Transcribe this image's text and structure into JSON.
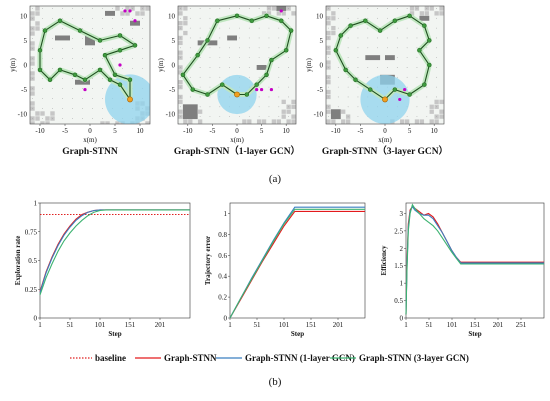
{
  "figure": {
    "part_a_label": "(a)",
    "part_b_label": "(b)"
  },
  "colors": {
    "baseline": "#e02020",
    "graph_stnn": "#e31a1c",
    "gcn1": "#3a7fc1",
    "gcn3": "#3cb371",
    "map_bg": "#f2f5f2",
    "obstacle": "#7f7f7f",
    "unknown": "#c6c6c6",
    "visited": "#d8efd8",
    "trajectory": "#1f4f1f",
    "robot_fov": "#8fd3ee",
    "target": "#c400c4"
  },
  "chart_data": [
    {
      "type": "map",
      "title": "Graph-STNN",
      "xlabel": "x(m)",
      "ylabel": "y(m)",
      "xticks": [
        -10,
        -5,
        0,
        5,
        10
      ],
      "yticks": [
        10,
        5,
        0,
        -5,
        -10
      ],
      "xlim": [
        -12,
        12
      ],
      "ylim": [
        -12,
        12
      ],
      "trajectory": [
        [
          8,
          -7
        ],
        [
          8,
          -3
        ],
        [
          5,
          -2
        ],
        [
          3,
          2
        ],
        [
          6,
          3
        ],
        [
          9,
          4
        ],
        [
          6,
          6
        ],
        [
          2,
          5
        ],
        [
          -2,
          7
        ],
        [
          -6,
          9
        ],
        [
          -9,
          7
        ],
        [
          -10,
          3
        ],
        [
          -10,
          -1
        ],
        [
          -8,
          -3
        ],
        [
          -6,
          -1
        ],
        [
          -3,
          -2
        ],
        [
          -1,
          -3
        ],
        [
          2,
          -1
        ],
        [
          4,
          -3
        ],
        [
          6,
          -4
        ],
        [
          8,
          -7
        ]
      ],
      "walls": [
        [
          -7,
          5,
          3,
          1
        ],
        [
          -1,
          4,
          2,
          2
        ],
        [
          -3,
          -4,
          3,
          1
        ],
        [
          3,
          10,
          2,
          1
        ],
        [
          8,
          8,
          2,
          1
        ]
      ],
      "robot": [
        8,
        -7
      ],
      "fov_radius": 5,
      "targets": [
        [
          7,
          11
        ],
        [
          8,
          11
        ],
        [
          9,
          9
        ],
        [
          -1,
          -5
        ],
        [
          6,
          0
        ]
      ]
    },
    {
      "type": "map",
      "title": "Graph-STNN（1-layer GCN）",
      "xlabel": "x(m)",
      "ylabel": "y(m)",
      "xticks": [
        -10,
        -5,
        0,
        5,
        10
      ],
      "yticks": [
        10,
        5,
        0,
        -5,
        -10
      ],
      "xlim": [
        -12,
        12
      ],
      "ylim": [
        -12,
        12
      ],
      "trajectory": [
        [
          0,
          -6
        ],
        [
          -3,
          -4
        ],
        [
          -6,
          -6
        ],
        [
          -9,
          -5
        ],
        [
          -11,
          -2
        ],
        [
          -8,
          2
        ],
        [
          -6,
          5
        ],
        [
          -4,
          9
        ],
        [
          0,
          10
        ],
        [
          3,
          9
        ],
        [
          6,
          10
        ],
        [
          9,
          9
        ],
        [
          11,
          7
        ],
        [
          10,
          3
        ],
        [
          7,
          1
        ],
        [
          6,
          -2
        ],
        [
          4,
          -4
        ],
        [
          2,
          -6
        ],
        [
          0,
          -6
        ]
      ],
      "walls": [
        [
          -8,
          4,
          4,
          1
        ],
        [
          -2,
          5,
          2,
          1
        ],
        [
          -11,
          -11,
          3,
          3
        ],
        [
          4,
          -1,
          2,
          1
        ],
        [
          8,
          11,
          2,
          1
        ]
      ],
      "robot": [
        0,
        -6
      ],
      "fov_radius": 4,
      "targets": [
        [
          4,
          -5
        ],
        [
          5,
          -5
        ],
        [
          7,
          -5
        ],
        [
          9,
          11
        ]
      ]
    },
    {
      "type": "map",
      "title": "Graph-STNN（3-layer GCN）",
      "xlabel": "x(m)",
      "ylabel": "y(m)",
      "xticks": [
        -10,
        -5,
        0,
        5,
        10
      ],
      "yticks": [
        10,
        5,
        0,
        -5,
        -10
      ],
      "xlim": [
        -12,
        12
      ],
      "ylim": [
        -12,
        12
      ],
      "trajectory": [
        [
          0,
          -7
        ],
        [
          -3,
          -5
        ],
        [
          -6,
          -3
        ],
        [
          -8,
          -1
        ],
        [
          -10,
          3
        ],
        [
          -9,
          6
        ],
        [
          -7,
          8
        ],
        [
          -4,
          9
        ],
        [
          -1,
          7
        ],
        [
          2,
          9
        ],
        [
          5,
          10
        ],
        [
          8,
          8
        ],
        [
          9,
          5
        ],
        [
          7,
          3
        ],
        [
          9,
          0
        ],
        [
          8,
          -4
        ],
        [
          5,
          -6
        ],
        [
          2,
          -5
        ],
        [
          0,
          -7
        ]
      ],
      "walls": [
        [
          -4,
          1,
          3,
          1
        ],
        [
          0,
          1,
          2,
          1
        ],
        [
          -1,
          -4,
          3,
          2
        ],
        [
          7,
          9,
          2,
          1
        ],
        [
          -11,
          -11,
          2,
          2
        ]
      ],
      "robot": [
        0,
        -7
      ],
      "fov_radius": 5,
      "targets": [
        [
          3,
          -7
        ],
        [
          4,
          -5
        ]
      ]
    },
    {
      "type": "line",
      "xlabel": "Step",
      "ylabel": "Exploration rate",
      "xlim": [
        1,
        251
      ],
      "ylim": [
        0,
        1
      ],
      "xticks": [
        1,
        51,
        101,
        151,
        201
      ],
      "yticks": [
        0,
        0.25,
        0.5,
        0.75,
        1
      ],
      "series": [
        {
          "name": "baseline",
          "style": "dotted",
          "x": [
            1,
            251
          ],
          "y": [
            0.9,
            0.9
          ]
        },
        {
          "name": "Graph-STNN",
          "x": [
            1,
            11,
            21,
            31,
            41,
            51,
            61,
            71,
            81,
            91,
            101,
            111,
            121,
            251
          ],
          "y": [
            0.23,
            0.4,
            0.53,
            0.64,
            0.73,
            0.8,
            0.86,
            0.9,
            0.92,
            0.935,
            0.94,
            0.94,
            0.94,
            0.94
          ]
        },
        {
          "name": "Graph-STNN (1-layer GCN)",
          "x": [
            1,
            11,
            21,
            31,
            41,
            51,
            61,
            71,
            81,
            91,
            101,
            111,
            121,
            251
          ],
          "y": [
            0.22,
            0.39,
            0.52,
            0.63,
            0.72,
            0.79,
            0.85,
            0.89,
            0.92,
            0.935,
            0.94,
            0.94,
            0.94,
            0.94
          ]
        },
        {
          "name": "Graph-STNN (3-layer GCN)",
          "x": [
            1,
            11,
            21,
            31,
            41,
            51,
            61,
            71,
            81,
            91,
            101,
            111,
            121,
            251
          ],
          "y": [
            0.2,
            0.35,
            0.47,
            0.58,
            0.67,
            0.74,
            0.8,
            0.85,
            0.89,
            0.92,
            0.935,
            0.94,
            0.94,
            0.94
          ]
        }
      ]
    },
    {
      "type": "line",
      "xlabel": "Step",
      "ylabel": "Trajectory error",
      "xlim": [
        1,
        251
      ],
      "ylim": [
        0,
        1.1
      ],
      "xticks": [
        1,
        51,
        101,
        151,
        201
      ],
      "yticks": [
        0,
        0.2,
        0.4,
        0.6,
        0.8,
        1
      ],
      "series": [
        {
          "name": "Graph-STNN",
          "x": [
            1,
            21,
            41,
            61,
            81,
            101,
            121,
            251
          ],
          "y": [
            0.0,
            0.18,
            0.36,
            0.54,
            0.71,
            0.88,
            1.02,
            1.02
          ]
        },
        {
          "name": "Graph-STNN (1-layer GCN)",
          "x": [
            1,
            21,
            41,
            61,
            81,
            101,
            121,
            251
          ],
          "y": [
            0.0,
            0.19,
            0.38,
            0.56,
            0.74,
            0.91,
            1.06,
            1.06
          ]
        },
        {
          "name": "Graph-STNN (3-layer GCN)",
          "x": [
            1,
            21,
            41,
            61,
            81,
            101,
            121,
            251
          ],
          "y": [
            0.0,
            0.19,
            0.37,
            0.55,
            0.73,
            0.9,
            1.04,
            1.04
          ]
        }
      ]
    },
    {
      "type": "line",
      "xlabel": "Step",
      "ylabel": "Efficiency",
      "xlim": [
        1,
        301
      ],
      "ylim": [
        0,
        3.3
      ],
      "xticks": [
        1,
        51,
        101,
        151,
        201,
        251
      ],
      "yticks": [
        0,
        0.5,
        1,
        1.5,
        2,
        2.5,
        3
      ],
      "series": [
        {
          "name": "Graph-STNN",
          "x": [
            1,
            3,
            6,
            10,
            15,
            20,
            30,
            40,
            50,
            60,
            70,
            80,
            90,
            100,
            110,
            120,
            301
          ],
          "y": [
            0.1,
            1.5,
            2.7,
            3.1,
            3.2,
            3.15,
            3.05,
            2.95,
            3.0,
            2.9,
            2.7,
            2.45,
            2.2,
            1.95,
            1.75,
            1.6,
            1.6
          ]
        },
        {
          "name": "Graph-STNN (1-layer GCN)",
          "x": [
            1,
            3,
            6,
            10,
            15,
            20,
            30,
            40,
            50,
            60,
            70,
            80,
            90,
            100,
            110,
            120,
            301
          ],
          "y": [
            0.1,
            1.4,
            2.6,
            3.05,
            3.2,
            3.1,
            3.0,
            2.95,
            2.95,
            2.85,
            2.65,
            2.45,
            2.2,
            1.95,
            1.75,
            1.58,
            1.58
          ]
        },
        {
          "name": "Graph-STNN (3-layer GCN)",
          "x": [
            1,
            3,
            6,
            10,
            15,
            20,
            30,
            40,
            50,
            60,
            70,
            80,
            90,
            100,
            110,
            120,
            301
          ],
          "y": [
            0.1,
            1.3,
            2.5,
            3.0,
            3.25,
            3.15,
            3.0,
            2.85,
            2.75,
            2.65,
            2.5,
            2.3,
            2.1,
            1.9,
            1.72,
            1.55,
            1.55
          ]
        }
      ]
    }
  ],
  "legend": {
    "items": [
      {
        "label": "baseline",
        "key": "baseline"
      },
      {
        "label": "Graph-STNN",
        "key": "graph_stnn"
      },
      {
        "label": "Graph-STNN (1-layer GCN)",
        "key": "gcn1"
      },
      {
        "label": "Graph-STNN (3-layer GCN)",
        "key": "gcn3"
      }
    ]
  }
}
